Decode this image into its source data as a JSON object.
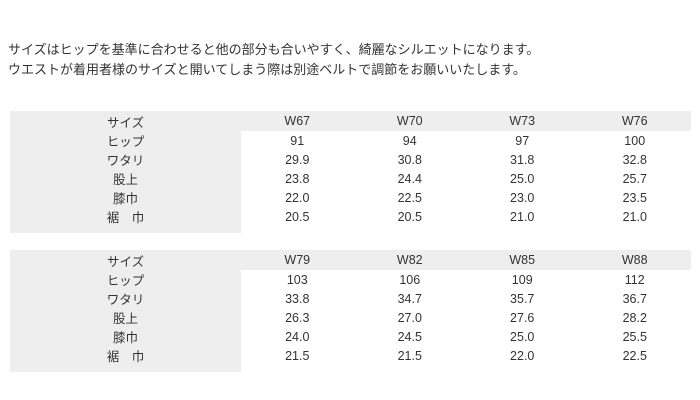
{
  "colors": {
    "page_background": "#ffffff",
    "cell_gray": "#eeeeee",
    "text": "#333333"
  },
  "description": {
    "line1": "サイズはヒップを基準に合わせると他の部分も合いやすく、綺麗なシルエットになります。",
    "line2": "ウエストが着用者様のサイズと開いてしまう際は別途ベルトで調節をお願いいたします。"
  },
  "size_charts": [
    {
      "header": [
        "サイズ",
        "W67",
        "W70",
        "W73",
        "W76"
      ],
      "rows": [
        {
          "label": "ヒップ",
          "values": [
            "91",
            "94",
            "97",
            "100"
          ]
        },
        {
          "label": "ワタリ",
          "values": [
            "29.9",
            "30.8",
            "31.8",
            "32.8"
          ]
        },
        {
          "label": "股上",
          "values": [
            "23.8",
            "24.4",
            "25.0",
            "25.7"
          ]
        },
        {
          "label": "膝巾",
          "values": [
            "22.0",
            "22.5",
            "23.0",
            "23.5"
          ]
        },
        {
          "label": "裾　巾",
          "values": [
            "20.5",
            "20.5",
            "21.0",
            "21.0"
          ]
        }
      ]
    },
    {
      "header": [
        "サイズ",
        "W79",
        "W82",
        "W85",
        "W88"
      ],
      "rows": [
        {
          "label": "ヒップ",
          "values": [
            "103",
            "106",
            "109",
            "112"
          ]
        },
        {
          "label": "ワタリ",
          "values": [
            "33.8",
            "34.7",
            "35.7",
            "36.7"
          ]
        },
        {
          "label": "股上",
          "values": [
            "26.3",
            "27.0",
            "27.6",
            "28.2"
          ]
        },
        {
          "label": "膝巾",
          "values": [
            "24.0",
            "24.5",
            "25.0",
            "25.5"
          ]
        },
        {
          "label": "裾　巾",
          "values": [
            "21.5",
            "21.5",
            "22.0",
            "22.5"
          ]
        }
      ]
    }
  ]
}
